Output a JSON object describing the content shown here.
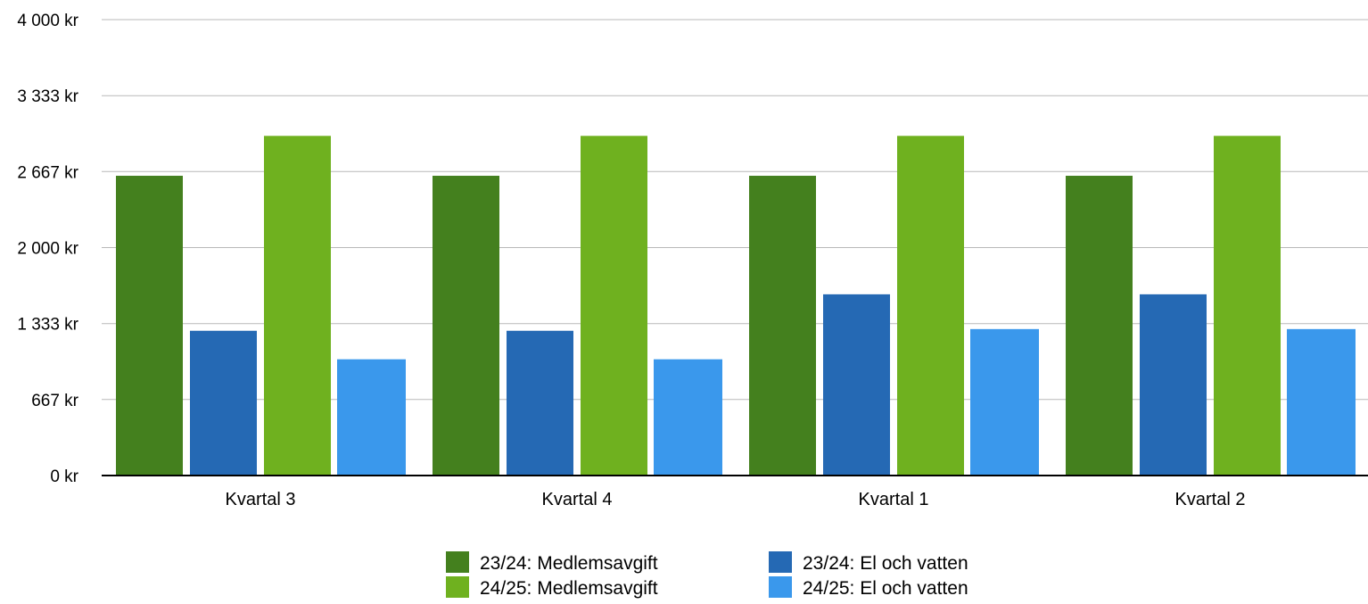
{
  "chart_data": {
    "type": "bar",
    "title": "",
    "xlabel": "",
    "ylabel": "",
    "categories": [
      "Kvartal 3",
      "Kvartal 4",
      "Kvartal 1",
      "Kvartal 2"
    ],
    "series": [
      {
        "name": "23/24: Medlemsavgift",
        "color": "#44801e",
        "values": [
          2630,
          2630,
          2630,
          2630
        ]
      },
      {
        "name": "23/24: El och vatten",
        "color": "#2569b4",
        "values": [
          1270,
          1270,
          1590,
          1590
        ]
      },
      {
        "name": "24/25: Medlemsavgift",
        "color": "#6fb11f",
        "values": [
          2980,
          2980,
          2980,
          2980
        ]
      },
      {
        "name": "24/25: El och vatten",
        "color": "#3a98ec",
        "values": [
          1020,
          1020,
          1285,
          1285
        ]
      }
    ],
    "ylim": [
      0,
      4000
    ],
    "yticks": [
      0,
      667,
      1333,
      2000,
      2667,
      3333,
      4000
    ],
    "ytick_labels": [
      "0 kr",
      "667 kr",
      "1 333 kr",
      "2 000 kr",
      "2 667 kr",
      "3 333 kr",
      "4 000 kr"
    ],
    "grid": true,
    "legend": "bottom"
  }
}
